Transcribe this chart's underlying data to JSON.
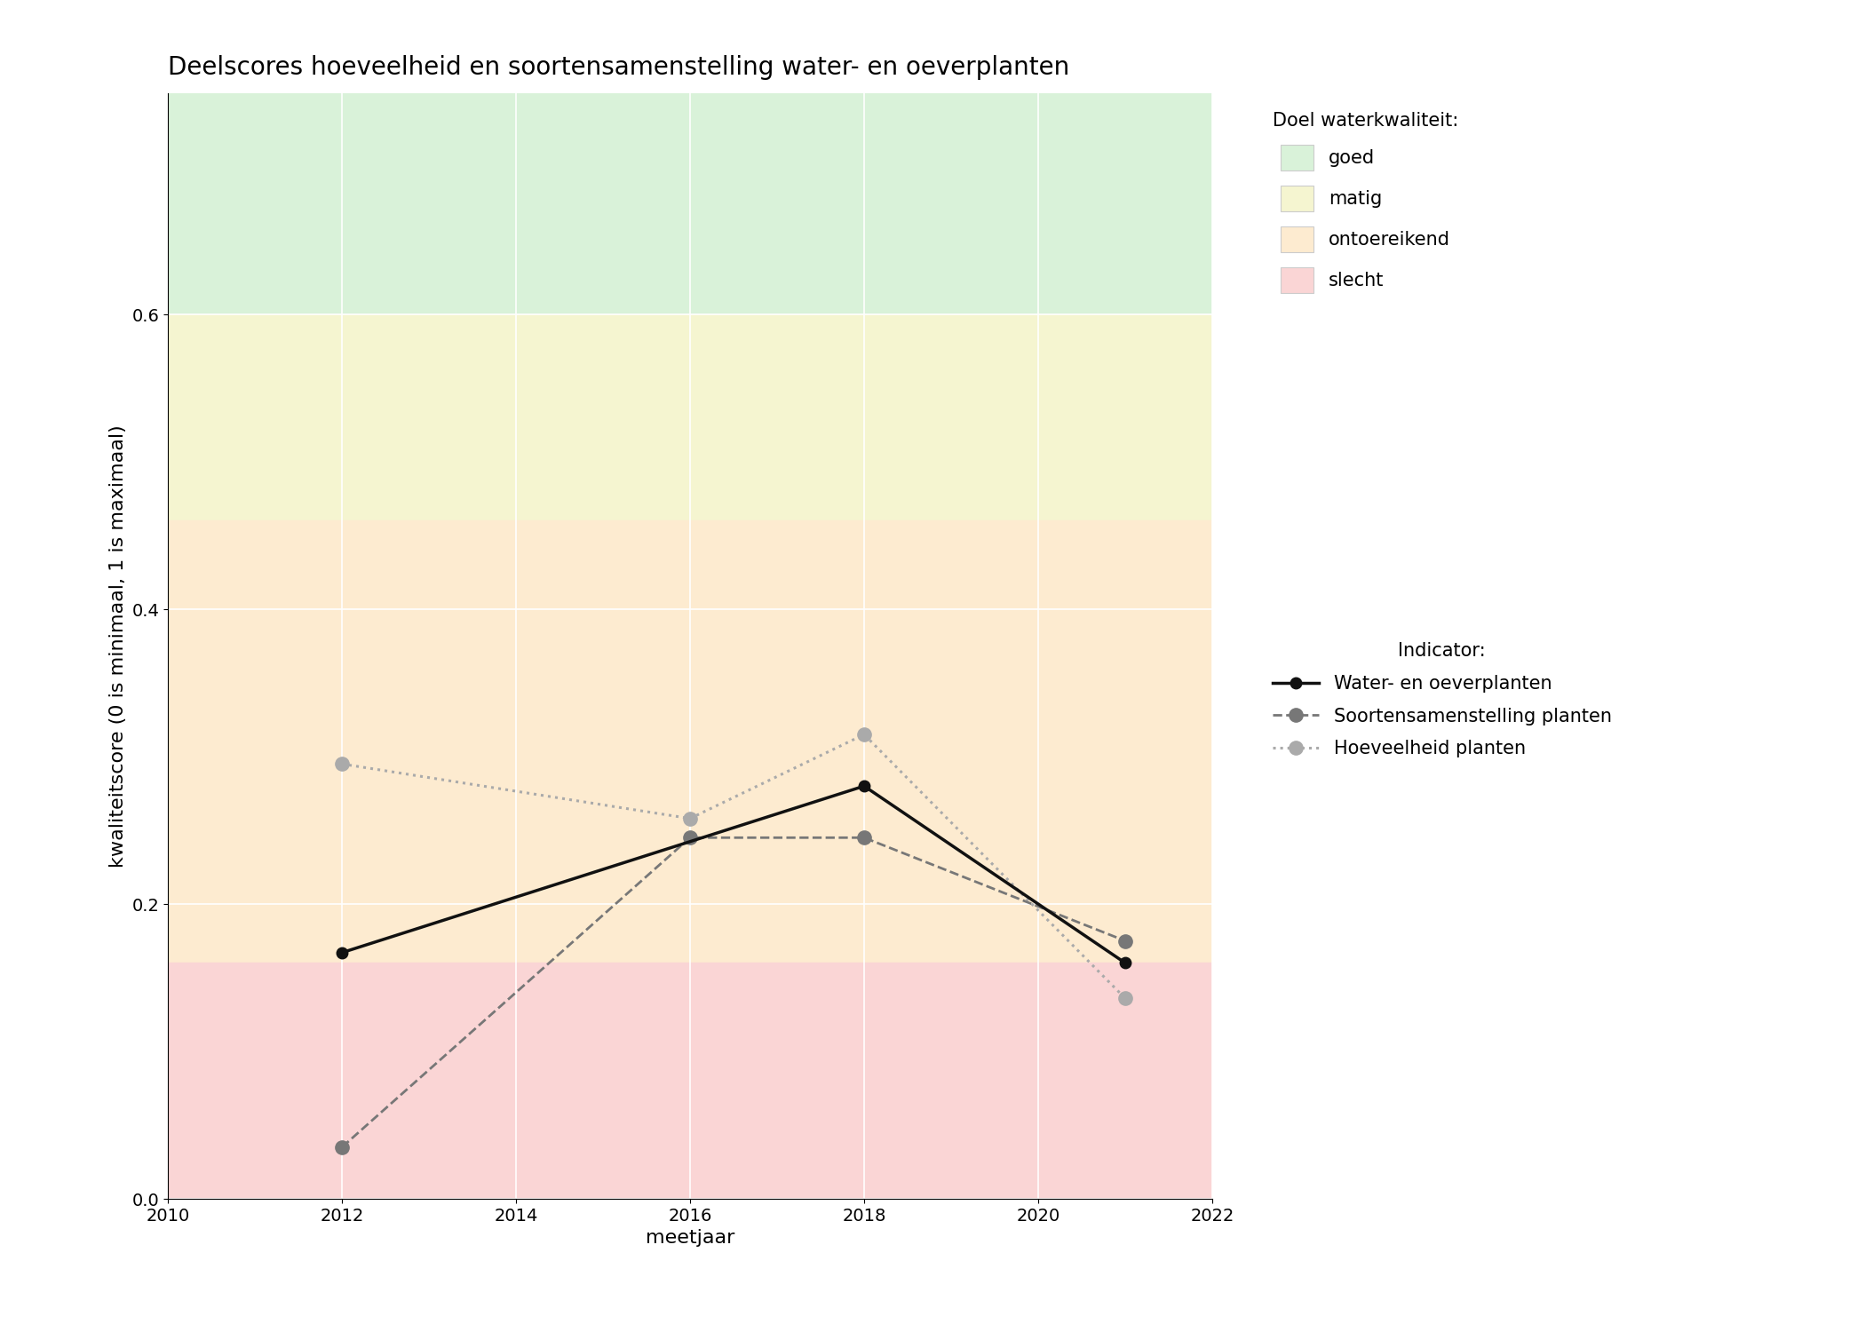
{
  "title": "Deelscores hoeveelheid en soortensamenstelling water- en oeverplanten",
  "xlabel": "meetjaar",
  "ylabel": "kwaliteitscore (0 is minimaal, 1 is maximaal)",
  "xlim": [
    2010,
    2022
  ],
  "ylim": [
    0,
    0.75
  ],
  "yticks": [
    0.0,
    0.2,
    0.4,
    0.6
  ],
  "xticks": [
    2010,
    2012,
    2014,
    2016,
    2018,
    2020,
    2022
  ],
  "background_color": "#ffffff",
  "zones": {
    "goed": {
      "ymin": 0.6,
      "ymax": 0.75,
      "color": "#d9f2d9"
    },
    "matig": {
      "ymin": 0.46,
      "ymax": 0.6,
      "color": "#f5f5d0"
    },
    "ontoereikend": {
      "ymin": 0.16,
      "ymax": 0.46,
      "color": "#fdebd0"
    },
    "slecht": {
      "ymin": 0.0,
      "ymax": 0.16,
      "color": "#fad5d5"
    }
  },
  "line_water_oever": {
    "x": [
      2012,
      2018,
      2021
    ],
    "y": [
      0.167,
      0.28,
      0.16
    ],
    "color": "#111111",
    "linestyle": "solid",
    "linewidth": 2.5,
    "markersize": 9,
    "label": "Water- en oeverplanten"
  },
  "line_soorten": {
    "x": [
      2012,
      2016,
      2018,
      2021
    ],
    "y": [
      0.035,
      0.245,
      0.245,
      0.175
    ],
    "color": "#777777",
    "linestyle": "dashed",
    "linewidth": 2.0,
    "markersize": 11,
    "label": "Soortensamenstelling planten"
  },
  "line_hoeveelheid": {
    "x": [
      2012,
      2016,
      2018,
      2021
    ],
    "y": [
      0.295,
      0.258,
      0.315,
      0.136
    ],
    "color": "#aaaaaa",
    "linestyle": "dotted",
    "linewidth": 2.2,
    "markersize": 11,
    "label": "Hoeveelheid planten"
  },
  "legend_title_doel": "Doel waterkwaliteit:",
  "legend_labels_doel": [
    "goed",
    "matig",
    "ontoereikend",
    "slecht"
  ],
  "legend_title_indicator": "Indicator:",
  "title_fontsize": 20,
  "label_fontsize": 16,
  "tick_fontsize": 14,
  "legend_fontsize": 15
}
